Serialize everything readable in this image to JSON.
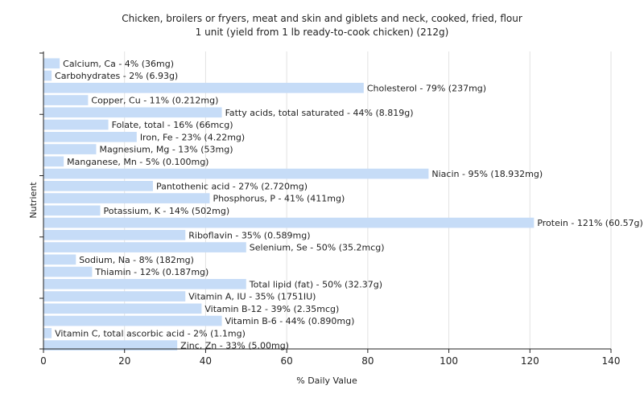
{
  "chart_data": {
    "type": "bar",
    "orientation": "horizontal",
    "title": "Chicken, broilers or fryers, meat and skin and giblets and neck, cooked, fried, flour",
    "subtitle": "1 unit (yield from 1 lb ready-to-cook chicken) (212g)",
    "xlabel": "% Daily Value",
    "ylabel": "Nutrient",
    "xlim": [
      0,
      140
    ],
    "xticks": [
      0,
      20,
      40,
      60,
      80,
      100,
      120,
      140
    ],
    "grid": "vertical",
    "bar_color": "#c6dcf7",
    "categories": [
      "Calcium, Ca",
      "Carbohydrates",
      "Cholesterol",
      "Copper, Cu",
      "Fatty acids, total saturated",
      "Folate, total",
      "Iron, Fe",
      "Magnesium, Mg",
      "Manganese, Mn",
      "Niacin",
      "Pantothenic acid",
      "Phosphorus, P",
      "Potassium, K",
      "Protein",
      "Riboflavin",
      "Selenium, Se",
      "Sodium, Na",
      "Thiamin",
      "Total lipid (fat)",
      "Vitamin A, IU",
      "Vitamin B-12",
      "Vitamin B-6",
      "Vitamin C, total ascorbic acid",
      "Zinc, Zn"
    ],
    "values": [
      4,
      2,
      79,
      11,
      44,
      16,
      23,
      13,
      5,
      95,
      27,
      41,
      14,
      121,
      35,
      50,
      8,
      12,
      50,
      35,
      39,
      44,
      2,
      33
    ],
    "labels": [
      "Calcium, Ca - 4% (36mg)",
      "Carbohydrates - 2% (6.93g)",
      "Cholesterol - 79% (237mg)",
      "Copper, Cu - 11% (0.212mg)",
      "Fatty acids, total saturated - 44% (8.819g)",
      "Folate, total - 16% (66mcg)",
      "Iron, Fe - 23% (4.22mg)",
      "Magnesium, Mg - 13% (53mg)",
      "Manganese, Mn - 5% (0.100mg)",
      "Niacin - 95% (18.932mg)",
      "Pantothenic acid - 27% (2.720mg)",
      "Phosphorus, P - 41% (411mg)",
      "Potassium, K - 14% (502mg)",
      "Protein - 121% (60.57g)",
      "Riboflavin - 35% (0.589mg)",
      "Selenium, Se - 50% (35.2mcg)",
      "Sodium, Na - 8% (182mg)",
      "Thiamin - 12% (0.187mg)",
      "Total lipid (fat) - 50% (32.37g)",
      "Vitamin A, IU - 35% (1751IU)",
      "Vitamin B-12 - 39% (2.35mcg)",
      "Vitamin B-6 - 44% (0.890mg)",
      "Vitamin C, total ascorbic acid - 2% (1.1mg)",
      "Zinc, Zn - 33% (5.00mg)"
    ]
  }
}
